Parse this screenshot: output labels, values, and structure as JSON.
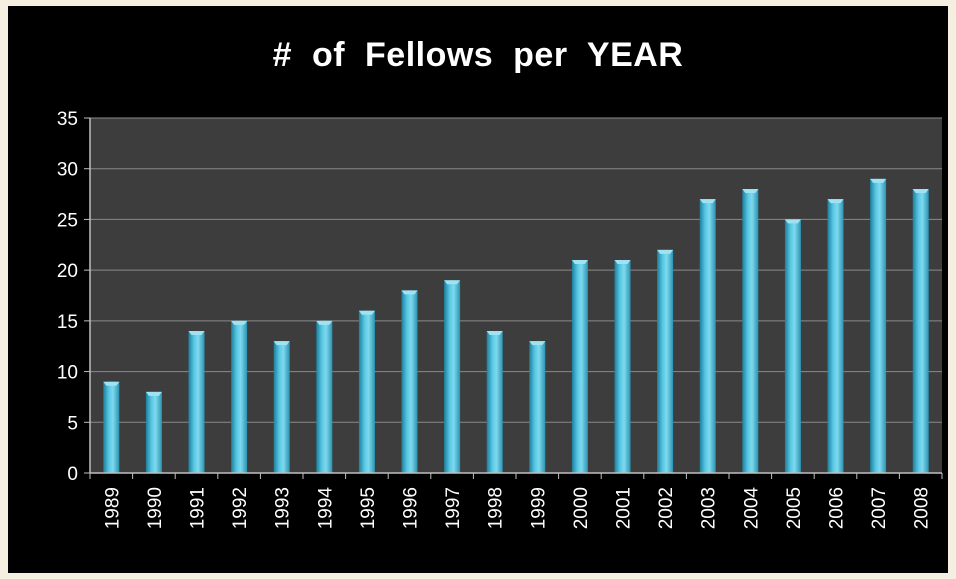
{
  "chart_data": {
    "type": "bar",
    "title": "# of Fellows per YEAR",
    "xlabel": "",
    "ylabel": "",
    "categories": [
      "1989",
      "1990",
      "1991",
      "1992",
      "1993",
      "1994",
      "1995",
      "1996",
      "1997",
      "1998",
      "1999",
      "2000",
      "2001",
      "2002",
      "2003",
      "2004",
      "2005",
      "2006",
      "2007",
      "2008"
    ],
    "values": [
      9,
      8,
      14,
      15,
      13,
      15,
      16,
      18,
      19,
      14,
      13,
      21,
      21,
      22,
      27,
      28,
      25,
      27,
      29,
      28
    ],
    "ylim": [
      0,
      35
    ],
    "yticks": [
      0,
      5,
      10,
      15,
      20,
      25,
      30,
      35
    ],
    "grid": true,
    "legend": "none",
    "colors": {
      "background": "#000000",
      "plot_area": "#3d3d3d",
      "bar": "#3fb3d4",
      "bar_highlight": "#9fe3f2",
      "bar_shadow": "#1d7f9c",
      "gridline": "#8a8a8a",
      "text": "#ffffff"
    }
  }
}
